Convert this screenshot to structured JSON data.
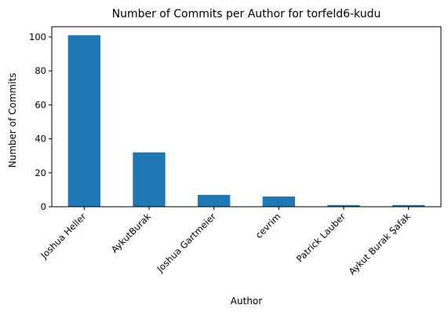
{
  "chart_data": {
    "type": "bar",
    "title": "Number of Commits per Author for torfeld6-kudu",
    "xlabel": "Author",
    "ylabel": "Number of Commits",
    "categories": [
      "Joshua Heller",
      "AykutBurak",
      "Joshua Gartmeier",
      "cevrim",
      "Patrick Lauber",
      "Aykut Burak Şafak"
    ],
    "values": [
      101,
      32,
      7,
      6,
      1,
      1
    ],
    "ylim": [
      0,
      106
    ],
    "yticks": [
      0,
      20,
      40,
      60,
      80,
      100
    ],
    "grid": false,
    "legend": "none",
    "bar_color": "#1f77b4"
  }
}
